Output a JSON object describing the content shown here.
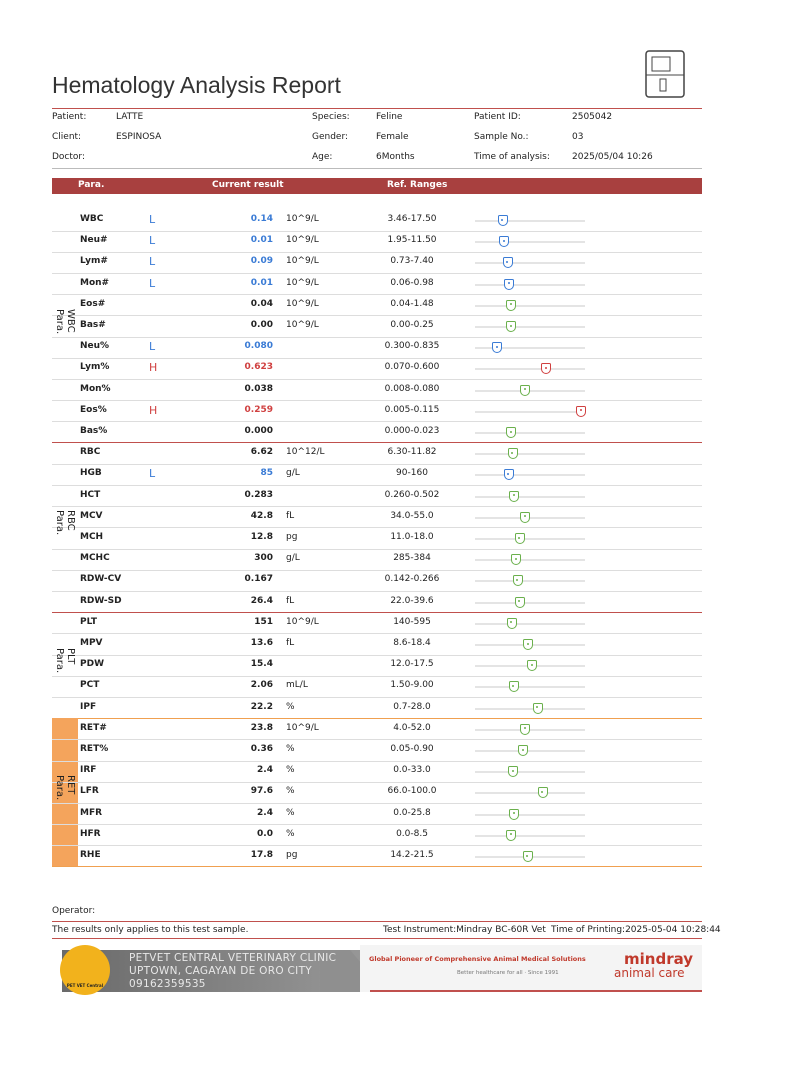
{
  "header": {
    "title": "Hematology Analysis Report"
  },
  "info": [
    [
      {
        "label": "Patient:",
        "value": "LATTE"
      },
      {
        "label": "Species:",
        "value": "Feline"
      },
      {
        "label": "Patient ID:",
        "value": "2505042"
      }
    ],
    [
      {
        "label": "Client:",
        "value": "ESPINOSA"
      },
      {
        "label": "Gender:",
        "value": "Female"
      },
      {
        "label": "Sample No.:",
        "value": "03"
      }
    ],
    [
      {
        "label": "Doctor:"
      },
      {
        "label": "Age:",
        "value": "6Months"
      },
      {
        "label": "Time of analysis:",
        "value": "2025/05/04 10:26"
      }
    ]
  ],
  "table": {
    "columns": [
      "Para.",
      "Current result",
      "Ref. Ranges"
    ],
    "groups": [
      {
        "label": "WBC Para.",
        "rows": [
          {
            "name": "WBC",
            "flag": "L",
            "result": "0.14",
            "unit": "10^9/L",
            "range": "3.46-17.50"
          },
          {
            "name": "Neu#",
            "flag": "L",
            "result": "0.01",
            "unit": "10^9/L",
            "range": "1.95-11.50"
          },
          {
            "name": "Lym#",
            "flag": "L",
            "result": "0.09",
            "unit": "10^9/L",
            "range": "0.73-7.40"
          },
          {
            "name": "Mon#",
            "flag": "L",
            "result": "0.01",
            "unit": "10^9/L",
            "range": "0.06-0.98"
          },
          {
            "name": "Eos#",
            "result": "0.04",
            "unit": "10^9/L",
            "range": "0.04-1.48"
          },
          {
            "name": "Bas#",
            "result": "0.00",
            "unit": "10^9/L",
            "range": "0.00-0.25"
          },
          {
            "name": "Neu%",
            "flag": "L",
            "result": "0.080",
            "range": "0.300-0.835"
          },
          {
            "name": "Lym%",
            "flag": "H",
            "result": "0.623",
            "range": "0.070-0.600"
          },
          {
            "name": "Mon%",
            "result": "0.038",
            "range": "0.008-0.080"
          },
          {
            "name": "Eos%",
            "flag": "H",
            "result": "0.259",
            "range": "0.005-0.115"
          },
          {
            "name": "Bas%",
            "result": "0.000",
            "range": "0.000-0.023"
          }
        ]
      },
      {
        "label": "RBC Para.",
        "rows": [
          {
            "name": "RBC",
            "result": "6.62",
            "unit": "10^12/L",
            "range": "6.30-11.82"
          },
          {
            "name": "HGB",
            "flag": "L",
            "result": "85",
            "unit": "g/L",
            "range": "90-160"
          },
          {
            "name": "HCT",
            "result": "0.283",
            "range": "0.260-0.502"
          },
          {
            "name": "MCV",
            "result": "42.8",
            "unit": "fL",
            "range": "34.0-55.0"
          },
          {
            "name": "MCH",
            "result": "12.8",
            "unit": "pg",
            "range": "11.0-18.0"
          },
          {
            "name": "MCHC",
            "result": "300",
            "unit": "g/L",
            "range": "285-384"
          },
          {
            "name": "RDW-CV",
            "result": "0.167",
            "range": "0.142-0.266"
          },
          {
            "name": "RDW-SD",
            "result": "26.4",
            "unit": "fL",
            "range": "22.0-39.6"
          }
        ]
      },
      {
        "label": "PLT Para.",
        "rows": [
          {
            "name": "PLT",
            "result": "151",
            "unit": "10^9/L",
            "range": "140-595"
          },
          {
            "name": "MPV",
            "result": "13.6",
            "unit": "fL",
            "range": "8.6-18.4"
          },
          {
            "name": "PDW",
            "result": "15.4",
            "range": "12.0-17.5"
          },
          {
            "name": "PCT",
            "result": "2.06",
            "unit": "mL/L",
            "range": "1.50-9.00"
          },
          {
            "name": "IPF",
            "result": "22.2",
            "unit": "%",
            "range": "0.7-28.0"
          }
        ]
      },
      {
        "label": "RET Para.",
        "rows": [
          {
            "name": "RET#",
            "result": "23.8",
            "unit": "10^9/L",
            "range": "4.0-52.0"
          },
          {
            "name": "RET%",
            "result": "0.36",
            "unit": "%",
            "range": "0.05-0.90"
          },
          {
            "name": "IRF",
            "result": "2.4",
            "unit": "%",
            "range": "0.0-33.0"
          },
          {
            "name": "LFR",
            "result": "97.6",
            "unit": "%",
            "range": "66.0-100.0"
          },
          {
            "name": "MFR",
            "result": "2.4",
            "unit": "%",
            "range": "0.0-25.8"
          },
          {
            "name": "HFR",
            "result": "0.0",
            "unit": "%",
            "range": "0.0-8.5"
          },
          {
            "name": "RHE",
            "result": "17.8",
            "unit": "pg",
            "range": "14.2-21.5"
          }
        ]
      }
    ]
  },
  "footer": {
    "operator": "Operator:",
    "note": "The results only applies to this test sample.",
    "instrument": "Test Instrument:Mindray BC-60R Vet",
    "printed": "Time of Printing:2025-05-04 10:28:44",
    "logo": "PET VET Central",
    "clinic": [
      "PETVET CENTRAL VETERINARY CLINIC",
      "UPTOWN, CAGAYAN DE ORO CITY",
      "09162359535"
    ],
    "slogan": "Global Pioneer of Comprehensive Animal Medical Solutions",
    "tagline": "Better healthcare for all  ·  Since 1991",
    "brand": "mindray",
    "brand_sub": "animal care"
  }
}
